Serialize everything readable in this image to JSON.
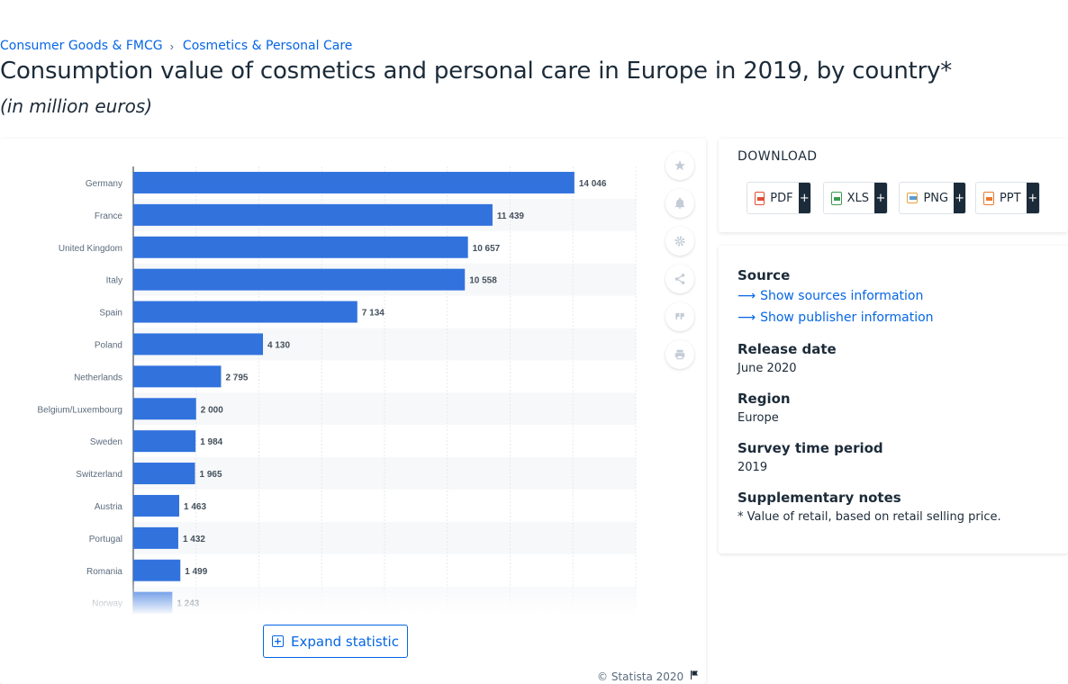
{
  "breadcrumb": {
    "items": [
      "Consumer Goods & FMCG",
      "Cosmetics & Personal Care"
    ],
    "separator": "›"
  },
  "title": "Consumption value of cosmetics and personal care in Europe in 2019, by country*",
  "subtitle": "(in million euros)",
  "expand_label": "Expand statistic",
  "copyright": "© Statista 2020",
  "tools": [
    "star-icon",
    "bell-icon",
    "gear-icon",
    "share-icon",
    "quote-icon",
    "print-icon"
  ],
  "download": {
    "title": "DOWNLOAD",
    "buttons": [
      {
        "label": "PDF",
        "color": "#e04e39"
      },
      {
        "label": "XLS",
        "color": "#3a9a4e"
      },
      {
        "label": "PNG",
        "color": "#e8a23a"
      },
      {
        "label": "PPT",
        "color": "#e8792d"
      }
    ],
    "plus": "+"
  },
  "info": {
    "source_heading": "Source",
    "show_sources": "Show sources information",
    "show_publisher": "Show publisher information",
    "release_heading": "Release date",
    "release_value": "June 2020",
    "region_heading": "Region",
    "region_value": "Europe",
    "survey_heading": "Survey time period",
    "survey_value": "2019",
    "notes_heading": "Supplementary notes",
    "notes_value": "* Value of retail, based on retail selling price."
  },
  "chart_data": {
    "type": "bar",
    "orientation": "horizontal",
    "categories": [
      "Germany",
      "France",
      "United Kingdom",
      "Italy",
      "Spain",
      "Poland",
      "Netherlands",
      "Belgium/Luxembourg",
      "Sweden",
      "Switzerland",
      "Austria",
      "Portugal",
      "Romania",
      "Norway"
    ],
    "values": [
      14046,
      11439,
      10657,
      10558,
      7134,
      4130,
      2795,
      2000,
      1984,
      1965,
      1463,
      1432,
      1499,
      1243
    ],
    "value_labels": [
      "14 046",
      "11 439",
      "10 657",
      "10 558",
      "7 134",
      "4 130",
      "2 795",
      "2 000",
      "1 984",
      "1 965",
      "1 463",
      "1 432",
      "1 499",
      "1 243"
    ],
    "xlim": [
      0,
      16000
    ],
    "grid": true,
    "bar_color": "#3172dd"
  }
}
